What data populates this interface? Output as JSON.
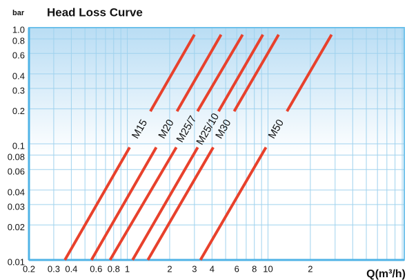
{
  "chart_data": {
    "type": "line",
    "title": "Head Loss Curve",
    "y_label": "bar",
    "x_label": "Q(m³/h)",
    "log_x": true,
    "log_y": true,
    "grid": true,
    "xlim": [
      0.2,
      93
    ],
    "ylim": [
      0.01,
      1
    ],
    "xticks": [
      0.2,
      0.3,
      0.4,
      0.6,
      0.8,
      1,
      2,
      3,
      4,
      6,
      8,
      10,
      {
        "value": 20,
        "label": "2"
      }
    ],
    "x_minor_grid": [
      0.5,
      0.7,
      0.9,
      5,
      7,
      9,
      30,
      40,
      50,
      60,
      70,
      80,
      90
    ],
    "yticks": [
      {
        "value": 1,
        "label": "1.0"
      },
      0.8,
      0.6,
      0.4,
      0.3,
      0.2,
      0.1,
      0.08,
      0.06,
      0.04,
      0.03,
      0.02,
      0.01
    ],
    "series": [
      {
        "name": "M15",
        "color": "#e8412c",
        "x": [
          0.36,
          3.0
        ],
        "values": [
          0.01,
          0.87
        ]
      },
      {
        "name": "M20",
        "color": "#e8412c",
        "x": [
          0.556,
          4.64
        ],
        "values": [
          0.01,
          0.87
        ]
      },
      {
        "name": "M25/7",
        "color": "#e8412c",
        "x": [
          0.754,
          6.6
        ],
        "values": [
          0.01,
          0.87
        ]
      },
      {
        "name": "M25/10",
        "color": "#e8412c",
        "x": [
          1.09,
          9.2
        ],
        "values": [
          0.01,
          0.87
        ]
      },
      {
        "name": "M30",
        "color": "#e8412c",
        "x": [
          1.4,
          11.9
        ],
        "values": [
          0.01,
          0.87
        ]
      },
      {
        "name": "M50",
        "color": "#e8412c",
        "x": [
          3.31,
          28.3
        ],
        "values": [
          0.01,
          0.87
        ]
      }
    ]
  }
}
